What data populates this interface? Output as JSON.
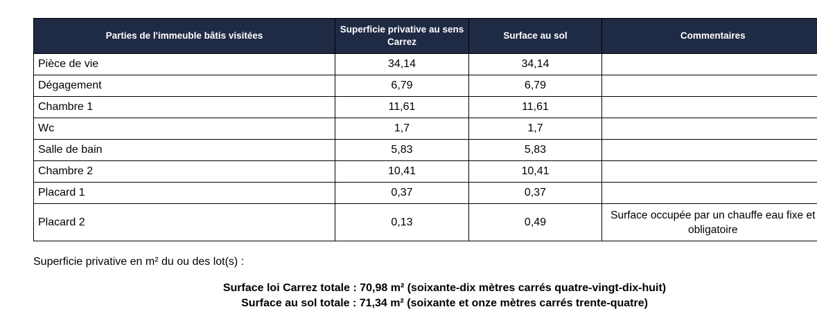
{
  "table": {
    "headers": {
      "parties": "Parties de l'immeuble bâtis visitées",
      "carrez": "Superficie privative au sens Carrez",
      "sol": "Surface au sol",
      "commentaires": "Commentaires"
    },
    "rows": [
      {
        "name": "Pièce de vie",
        "carrez": "34,14",
        "sol": "34,14",
        "comment": ""
      },
      {
        "name": "Dégagement",
        "carrez": "6,79",
        "sol": "6,79",
        "comment": ""
      },
      {
        "name": "Chambre 1",
        "carrez": "11,61",
        "sol": "11,61",
        "comment": ""
      },
      {
        "name": "Wc",
        "carrez": "1,7",
        "sol": "1,7",
        "comment": ""
      },
      {
        "name": "Salle de bain",
        "carrez": "5,83",
        "sol": "5,83",
        "comment": ""
      },
      {
        "name": "Chambre 2",
        "carrez": "10,41",
        "sol": "10,41",
        "comment": ""
      },
      {
        "name": "Placard 1",
        "carrez": "0,37",
        "sol": "0,37",
        "comment": ""
      },
      {
        "name": "Placard 2",
        "carrez": "0,13",
        "sol": "0,49",
        "comment": "Surface occupée par un chauffe eau fixe et obligatoire"
      }
    ]
  },
  "caption": "Superficie privative en m² du ou des lot(s) :",
  "totals": {
    "carrez": "Surface loi Carrez totale : 70,98 m² (soixante-dix mètres carrés quatre-vingt-dix-huit)",
    "sol": "Surface au sol totale : 71,34 m² (soixante et onze mètres carrés trente-quatre)"
  },
  "colors": {
    "header_background": "#1f2a44",
    "header_text": "#ffffff",
    "border": "#000000"
  }
}
